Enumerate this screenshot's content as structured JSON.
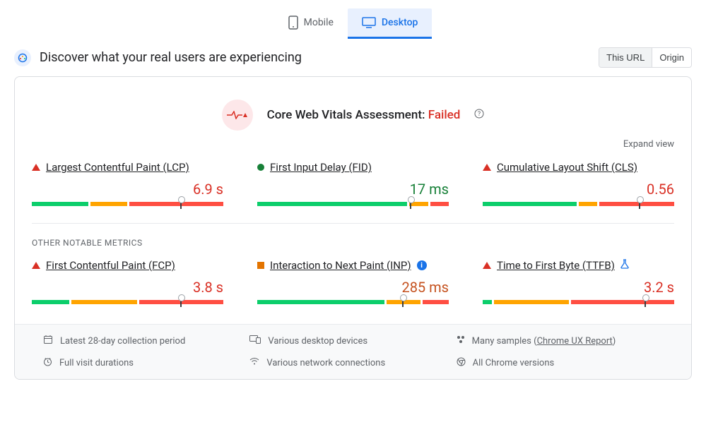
{
  "tabs": {
    "mobile": "Mobile",
    "desktop": "Desktop",
    "active": "desktop"
  },
  "header": {
    "title": "Discover what your real users are experiencing",
    "toggle": {
      "thisUrl": "This URL",
      "origin": "Origin",
      "active": "thisUrl"
    }
  },
  "assessment": {
    "label": "Core Web Vitals Assessment:",
    "status": "Failed",
    "status_color": "#d93025",
    "expand": "Expand view"
  },
  "section_label": "OTHER NOTABLE METRICS",
  "metrics_top": [
    {
      "name": "Largest Contentful Paint (LCP)",
      "indicator": "red-triangle",
      "value": "6.9 s",
      "value_color": "#d93025",
      "segments_pct": [
        30,
        20,
        50
      ],
      "marker_pct": 78
    },
    {
      "name": "First Input Delay (FID)",
      "indicator": "green-dot",
      "value": "17 ms",
      "value_color": "#178038",
      "segments_pct": [
        80,
        10,
        10
      ],
      "marker_pct": 80
    },
    {
      "name": "Cumulative Layout Shift (CLS)",
      "indicator": "red-triangle",
      "value": "0.56",
      "value_color": "#d93025",
      "segments_pct": [
        50,
        10,
        40
      ],
      "marker_pct": 82
    }
  ],
  "metrics_bottom": [
    {
      "name": "First Contentful Paint (FCP)",
      "indicator": "red-triangle",
      "value": "3.8 s",
      "value_color": "#d93025",
      "segments_pct": [
        20,
        35,
        45
      ],
      "marker_pct": 78
    },
    {
      "name": "Interaction to Next Paint (INP)",
      "indicator": "orange-square",
      "badge": "info",
      "value": "285 ms",
      "value_color": "#c5521f",
      "segments_pct": [
        68,
        18,
        14
      ],
      "marker_pct": 76
    },
    {
      "name": "Time to First Byte (TTFB)",
      "indicator": "red-triangle",
      "badge": "flask",
      "value": "3.2 s",
      "value_color": "#d93025",
      "segments_pct": [
        5,
        40,
        55
      ],
      "marker_pct": 85
    }
  ],
  "footer": {
    "period": "Latest 28-day collection period",
    "devices": "Various desktop devices",
    "samples_prefix": "Many samples (",
    "samples_link": "Chrome UX Report",
    "samples_suffix": ")",
    "durations": "Full visit durations",
    "network": "Various network connections",
    "versions": "All Chrome versions"
  },
  "colors": {
    "green": "#0cce6b",
    "orange": "#ffa400",
    "red": "#ff4e42"
  }
}
